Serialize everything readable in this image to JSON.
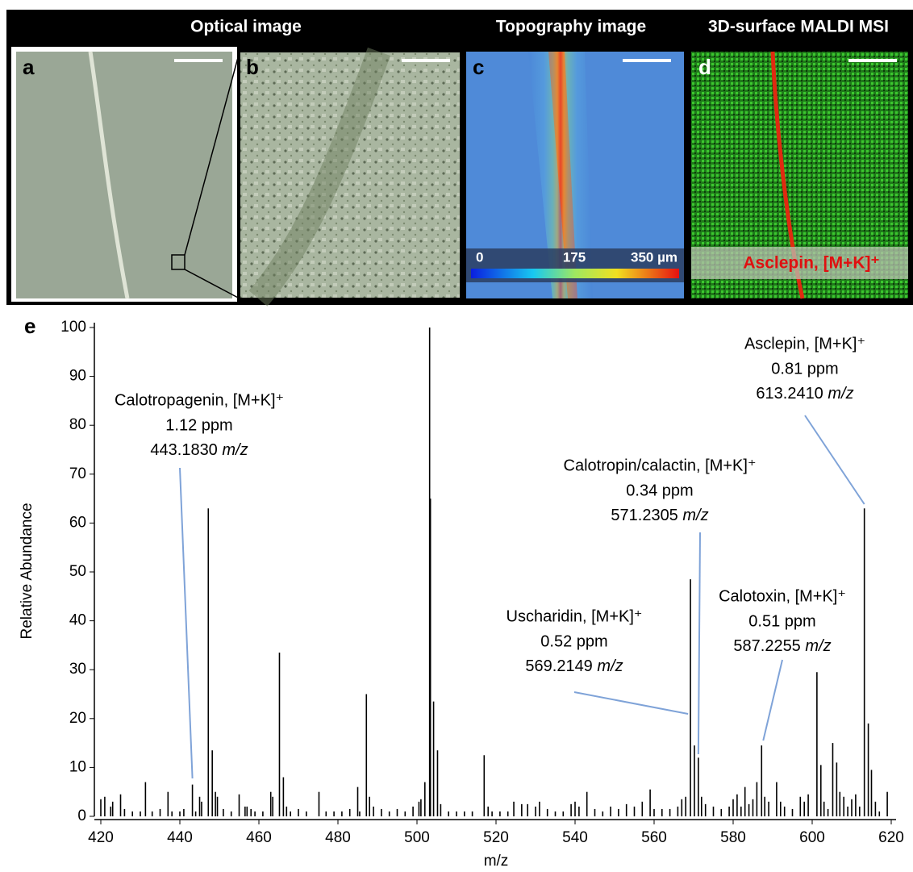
{
  "header": {
    "labels": [
      "Optical image",
      "Topography image",
      "3D-surface MALDI MSI"
    ]
  },
  "panels": [
    {
      "label": "a"
    },
    {
      "label": "b"
    },
    {
      "label": "c"
    },
    {
      "label": "d"
    }
  ],
  "colorbar": {
    "labels": [
      "0",
      "175",
      "350 µm"
    ]
  },
  "msi_label": "Asclepin, [M+K]⁺",
  "chart_data": {
    "type": "stem",
    "panel_label": "e",
    "xlabel": "m/z",
    "ylabel": "Relative Abundance",
    "x": [
      420,
      421,
      422.5,
      423,
      425,
      426,
      428,
      430,
      431.3,
      433,
      435,
      437,
      438,
      440,
      441,
      443.18,
      444,
      445,
      445.5,
      447.2,
      448.2,
      449,
      449.5,
      451,
      453,
      455,
      456.5,
      457,
      458,
      459,
      461,
      463,
      463.5,
      465.2,
      466.2,
      467,
      468,
      470,
      472,
      475.2,
      477,
      479,
      481,
      483,
      485,
      485.5,
      487.2,
      488,
      489,
      491,
      493,
      495,
      497,
      499,
      500.5,
      501,
      502,
      503.2,
      503.4,
      504.2,
      505.2,
      506,
      508,
      510,
      512,
      514,
      517,
      518,
      519,
      521,
      523,
      524.5,
      526.5,
      528,
      530,
      531,
      533,
      535,
      537,
      539,
      540,
      541,
      543,
      545,
      547,
      549,
      551,
      553,
      555,
      557,
      559,
      560,
      562,
      564,
      566,
      567,
      568,
      569.2,
      570.2,
      571.2,
      572,
      573,
      575,
      577,
      579,
      580,
      581,
      582,
      583,
      584,
      585,
      586,
      587.2,
      588,
      589,
      591,
      592,
      593,
      595,
      597,
      598,
      599,
      601.2,
      602.2,
      603,
      604,
      605.2,
      606.2,
      607,
      608,
      609,
      610,
      611,
      612,
      613.2,
      614.2,
      615,
      616,
      617,
      619
    ],
    "values": [
      3.5,
      4,
      2,
      3,
      4.5,
      1.5,
      1,
      1,
      7,
      1,
      1.5,
      5,
      1,
      1,
      1.5,
      6.5,
      1,
      4,
      3,
      63,
      13.5,
      5,
      4,
      1.5,
      1,
      4.5,
      2,
      2,
      1.5,
      1,
      1,
      5,
      4,
      33.5,
      8,
      2,
      1,
      1.5,
      1,
      5,
      1,
      1,
      1,
      1.5,
      6,
      1,
      25,
      4,
      2,
      1.5,
      1,
      1.5,
      1,
      2,
      3,
      3.5,
      7,
      100,
      65,
      23.5,
      13.5,
      2.5,
      1,
      1,
      1,
      1,
      12.5,
      2,
      1,
      1,
      1,
      3,
      2.5,
      2.5,
      2,
      3,
      1.5,
      1,
      1,
      2.5,
      3,
      2,
      5,
      1.5,
      1,
      2,
      1.5,
      2.5,
      2,
      3,
      5.5,
      1.5,
      1.5,
      1.5,
      2,
      3.5,
      4,
      48.5,
      14.5,
      12,
      4,
      2.5,
      2,
      1.5,
      2,
      3.5,
      4.5,
      2,
      6,
      2.5,
      3.5,
      7,
      14.5,
      4,
      3,
      7,
      3,
      2,
      1.5,
      4,
      3,
      4.5,
      29.5,
      10.5,
      3,
      1.5,
      15,
      11,
      5,
      4,
      2,
      3.5,
      4.5,
      2,
      63,
      19,
      9.5,
      3,
      1,
      5
    ],
    "color": "#000000",
    "xlim": [
      420,
      620
    ],
    "ylim": [
      0,
      100
    ],
    "xticks": [
      420,
      440,
      460,
      480,
      500,
      520,
      540,
      560,
      580,
      600,
      620
    ],
    "yticks": [
      0,
      10,
      20,
      30,
      40,
      50,
      60,
      70,
      80,
      90,
      100
    ],
    "annotations": [
      {
        "name": "Calotropagenin, [M+K]⁺",
        "ppm": "1.12 ppm",
        "mz": "443.1830",
        "unit": "m/z"
      },
      {
        "name": "Uscharidin, [M+K]⁺",
        "ppm": "0.52 ppm",
        "mz": "569.2149",
        "unit": "m/z"
      },
      {
        "name": "Calotropin/calactin, [M+K]⁺",
        "ppm": "0.34 ppm",
        "mz": "571.2305",
        "unit": "m/z"
      },
      {
        "name": "Calotoxin, [M+K]⁺",
        "ppm": "0.51 ppm",
        "mz": "587.2255",
        "unit": "m/z"
      },
      {
        "name": "Asclepin, [M+K]⁺",
        "ppm": "0.81 ppm",
        "mz": "613.2410",
        "unit": "m/z"
      }
    ]
  }
}
